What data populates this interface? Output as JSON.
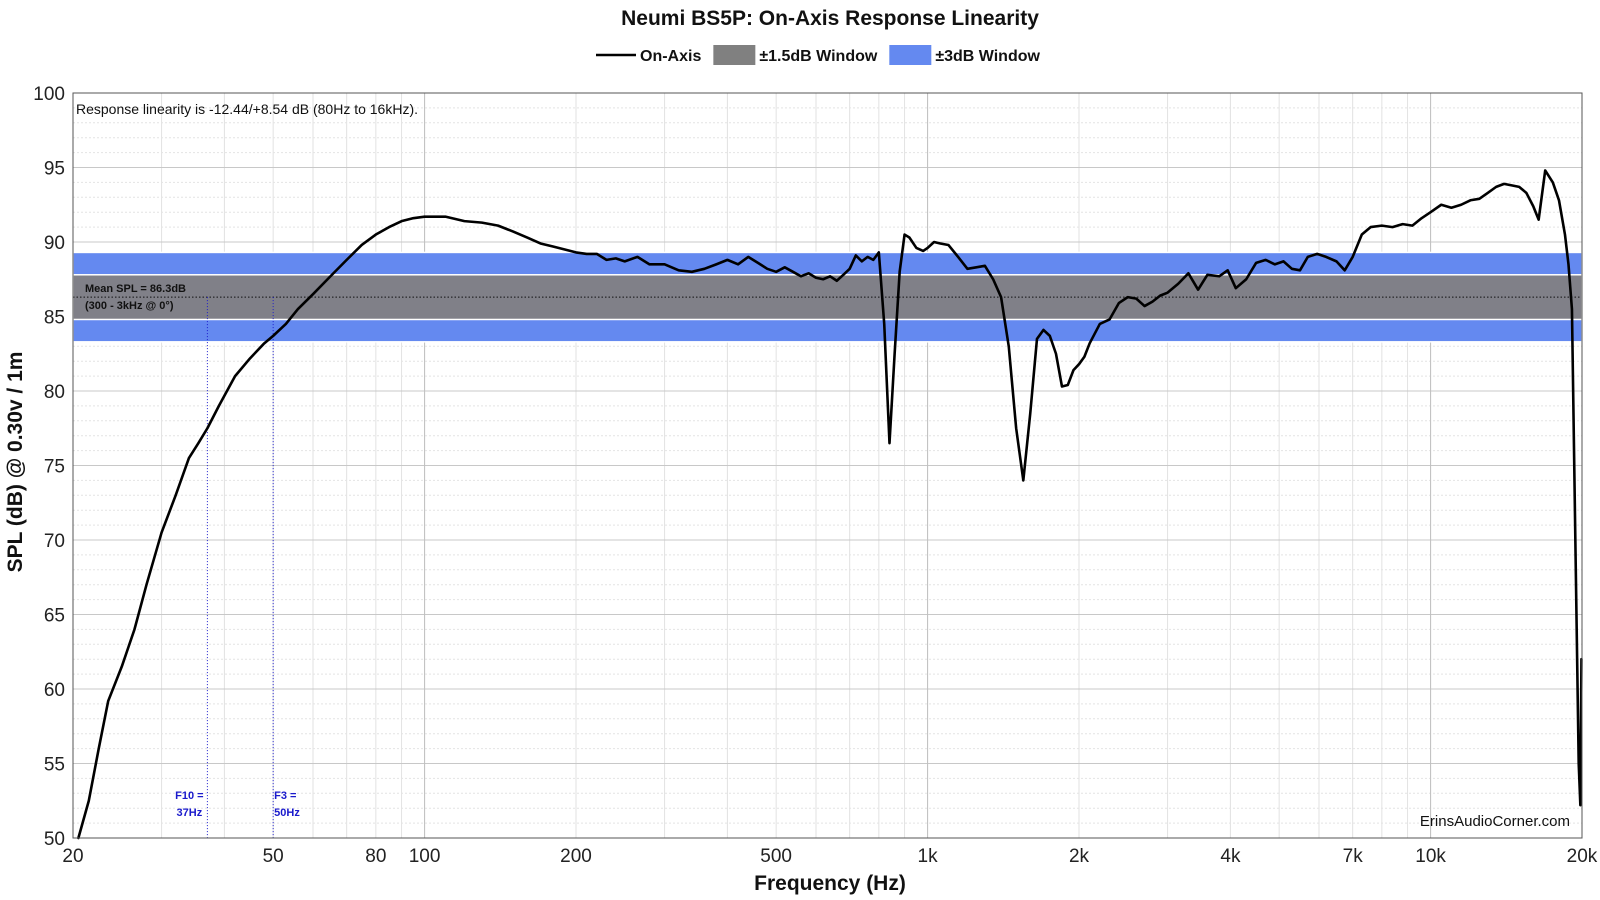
{
  "chart_data": {
    "type": "line",
    "title": "Neumi BS5P: On-Axis Response Linearity",
    "xlabel": "Frequency (Hz)",
    "ylabel": "SPL (dB) @ 0.30v / 1m",
    "x_scale": "log",
    "xlim": [
      20,
      20000
    ],
    "ylim": [
      50,
      100
    ],
    "grid": true,
    "legend_position": "top-center",
    "x_ticks": [
      {
        "value": 20,
        "label": "20"
      },
      {
        "value": 50,
        "label": "50"
      },
      {
        "value": 80,
        "label": "80"
      },
      {
        "value": 100,
        "label": "100"
      },
      {
        "value": 200,
        "label": "200"
      },
      {
        "value": 500,
        "label": "500"
      },
      {
        "value": 1000,
        "label": "1k"
      },
      {
        "value": 2000,
        "label": "2k"
      },
      {
        "value": 4000,
        "label": "4k"
      },
      {
        "value": 7000,
        "label": "7k"
      },
      {
        "value": 10000,
        "label": "10k"
      },
      {
        "value": 20000,
        "label": "20k"
      }
    ],
    "y_ticks": [
      50,
      55,
      60,
      65,
      70,
      75,
      80,
      85,
      90,
      95,
      100
    ],
    "legend": [
      {
        "label": "On-Axis",
        "color": "#000000",
        "kind": "line"
      },
      {
        "label": "±1.5dB Window",
        "color": "#808080",
        "kind": "box"
      },
      {
        "label": "±3dB Window",
        "color": "#6489f0",
        "kind": "box"
      }
    ],
    "mean_spl": 86.3,
    "windows": [
      {
        "name": "±3dB Window",
        "low": 83.3,
        "high": 89.3,
        "color": "#6489f0"
      },
      {
        "name": "±1.5dB Window",
        "low": 84.8,
        "high": 87.8,
        "color": "#808088"
      }
    ],
    "annotation": "Response linearity is -12.44/+8.54 dB (80Hz to 16kHz).",
    "mean_label_line1": "Mean SPL = 86.3dB",
    "mean_label_line2": "(300 - 3kHz @ 0°)",
    "markers": [
      {
        "freq": 37,
        "line1": "F10 =",
        "line2": "37Hz",
        "color": "#1a1acc"
      },
      {
        "freq": 50,
        "line1": "F3 =",
        "line2": "50Hz",
        "color": "#1a1acc"
      }
    ],
    "watermark": "ErinsAudioCorner.com",
    "series": [
      {
        "name": "On-Axis",
        "color": "#000000",
        "points": [
          [
            20.5,
            50.0
          ],
          [
            21.5,
            52.5
          ],
          [
            22.5,
            56.0
          ],
          [
            23.5,
            59.2
          ],
          [
            25,
            61.5
          ],
          [
            26.5,
            64.0
          ],
          [
            28,
            67.0
          ],
          [
            30,
            70.5
          ],
          [
            32,
            73.0
          ],
          [
            34,
            75.5
          ],
          [
            35.5,
            76.5
          ],
          [
            37,
            77.5
          ],
          [
            39,
            79.0
          ],
          [
            42,
            81.0
          ],
          [
            45,
            82.2
          ],
          [
            48,
            83.2
          ],
          [
            50,
            83.7
          ],
          [
            53,
            84.5
          ],
          [
            56,
            85.5
          ],
          [
            60,
            86.5
          ],
          [
            65,
            87.7
          ],
          [
            70,
            88.8
          ],
          [
            75,
            89.8
          ],
          [
            80,
            90.5
          ],
          [
            85,
            91.0
          ],
          [
            90,
            91.4
          ],
          [
            95,
            91.6
          ],
          [
            100,
            91.7
          ],
          [
            110,
            91.7
          ],
          [
            120,
            91.4
          ],
          [
            130,
            91.3
          ],
          [
            140,
            91.1
          ],
          [
            150,
            90.7
          ],
          [
            160,
            90.3
          ],
          [
            170,
            89.9
          ],
          [
            180,
            89.7
          ],
          [
            190,
            89.5
          ],
          [
            200,
            89.3
          ],
          [
            210,
            89.2
          ],
          [
            220,
            89.2
          ],
          [
            230,
            88.8
          ],
          [
            240,
            88.9
          ],
          [
            250,
            88.7
          ],
          [
            265,
            89.0
          ],
          [
            280,
            88.5
          ],
          [
            300,
            88.5
          ],
          [
            320,
            88.1
          ],
          [
            340,
            88.0
          ],
          [
            360,
            88.2
          ],
          [
            380,
            88.5
          ],
          [
            400,
            88.8
          ],
          [
            420,
            88.5
          ],
          [
            440,
            89.0
          ],
          [
            460,
            88.6
          ],
          [
            480,
            88.2
          ],
          [
            500,
            88.0
          ],
          [
            520,
            88.3
          ],
          [
            540,
            88.0
          ],
          [
            560,
            87.7
          ],
          [
            580,
            87.9
          ],
          [
            600,
            87.6
          ],
          [
            620,
            87.5
          ],
          [
            640,
            87.7
          ],
          [
            660,
            87.4
          ],
          [
            680,
            87.8
          ],
          [
            700,
            88.2
          ],
          [
            720,
            89.1
          ],
          [
            740,
            88.7
          ],
          [
            760,
            89.0
          ],
          [
            780,
            88.8
          ],
          [
            800,
            89.3
          ],
          [
            820,
            84.5
          ],
          [
            840,
            76.5
          ],
          [
            860,
            82.5
          ],
          [
            880,
            88.0
          ],
          [
            900,
            90.5
          ],
          [
            920,
            90.3
          ],
          [
            950,
            89.6
          ],
          [
            980,
            89.4
          ],
          [
            1000,
            89.6
          ],
          [
            1030,
            90.0
          ],
          [
            1060,
            89.9
          ],
          [
            1100,
            89.8
          ],
          [
            1150,
            89.0
          ],
          [
            1200,
            88.2
          ],
          [
            1250,
            88.3
          ],
          [
            1300,
            88.4
          ],
          [
            1350,
            87.5
          ],
          [
            1400,
            86.3
          ],
          [
            1450,
            83.0
          ],
          [
            1500,
            77.5
          ],
          [
            1550,
            74.0
          ],
          [
            1600,
            78.5
          ],
          [
            1650,
            83.5
          ],
          [
            1700,
            84.1
          ],
          [
            1750,
            83.7
          ],
          [
            1800,
            82.5
          ],
          [
            1850,
            80.3
          ],
          [
            1900,
            80.4
          ],
          [
            1950,
            81.4
          ],
          [
            2000,
            81.8
          ],
          [
            2050,
            82.3
          ],
          [
            2100,
            83.2
          ],
          [
            2200,
            84.5
          ],
          [
            2300,
            84.8
          ],
          [
            2400,
            85.9
          ],
          [
            2500,
            86.3
          ],
          [
            2600,
            86.2
          ],
          [
            2700,
            85.7
          ],
          [
            2800,
            86.0
          ],
          [
            2900,
            86.4
          ],
          [
            3000,
            86.6
          ],
          [
            3150,
            87.2
          ],
          [
            3300,
            87.9
          ],
          [
            3450,
            86.8
          ],
          [
            3600,
            87.8
          ],
          [
            3800,
            87.7
          ],
          [
            3950,
            88.1
          ],
          [
            4100,
            86.9
          ],
          [
            4300,
            87.5
          ],
          [
            4500,
            88.6
          ],
          [
            4700,
            88.8
          ],
          [
            4900,
            88.5
          ],
          [
            5100,
            88.7
          ],
          [
            5300,
            88.2
          ],
          [
            5500,
            88.1
          ],
          [
            5700,
            89.0
          ],
          [
            5950,
            89.2
          ],
          [
            6200,
            89.0
          ],
          [
            6500,
            88.7
          ],
          [
            6750,
            88.1
          ],
          [
            7000,
            89.0
          ],
          [
            7300,
            90.5
          ],
          [
            7600,
            91.0
          ],
          [
            8000,
            91.1
          ],
          [
            8400,
            91.0
          ],
          [
            8800,
            91.2
          ],
          [
            9200,
            91.1
          ],
          [
            9600,
            91.6
          ],
          [
            10000,
            92.0
          ],
          [
            10500,
            92.5
          ],
          [
            11000,
            92.3
          ],
          [
            11500,
            92.5
          ],
          [
            12000,
            92.8
          ],
          [
            12500,
            92.9
          ],
          [
            13000,
            93.3
          ],
          [
            13500,
            93.7
          ],
          [
            14000,
            93.9
          ],
          [
            14500,
            93.8
          ],
          [
            15000,
            93.7
          ],
          [
            15500,
            93.3
          ],
          [
            16000,
            92.4
          ],
          [
            16400,
            91.5
          ],
          [
            16900,
            94.8
          ],
          [
            17500,
            94.0
          ],
          [
            18000,
            92.8
          ],
          [
            18500,
            90.5
          ],
          [
            18800,
            88.5
          ],
          [
            19100,
            85.5
          ],
          [
            19400,
            70.0
          ],
          [
            19700,
            55.0
          ],
          [
            19850,
            52.2
          ],
          [
            19950,
            62.0
          ]
        ]
      }
    ]
  }
}
